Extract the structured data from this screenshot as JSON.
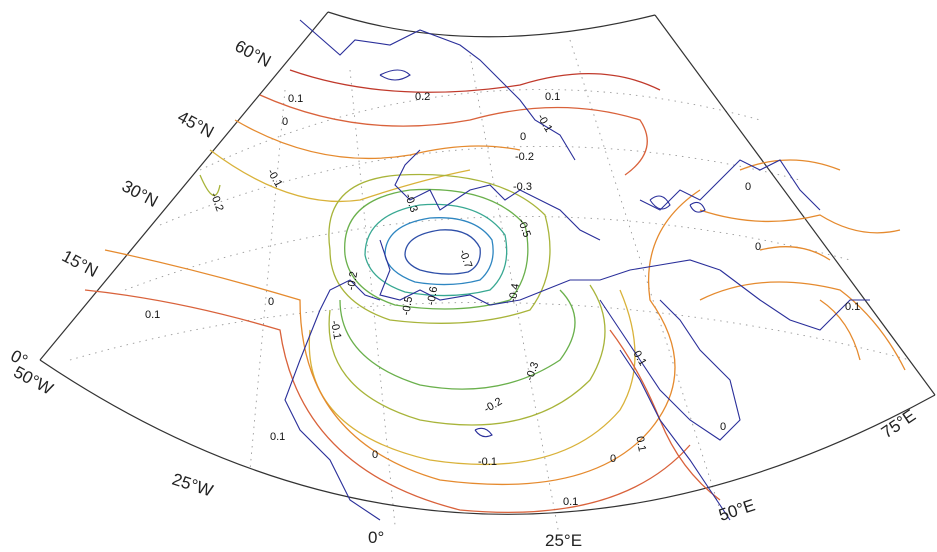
{
  "map": {
    "lat_labels": [
      {
        "text": "60°N",
        "key": "lat60"
      },
      {
        "text": "45°N",
        "key": "lat45"
      },
      {
        "text": "30°N",
        "key": "lat30"
      },
      {
        "text": "15°N",
        "key": "lat15"
      },
      {
        "text": "0°",
        "key": "lat0"
      }
    ],
    "lon_labels": [
      {
        "text": "50°W",
        "key": "lon50w"
      },
      {
        "text": "25°W",
        "key": "lon25w"
      },
      {
        "text": "0°",
        "key": "lon0"
      },
      {
        "text": "25°E",
        "key": "lon25e"
      },
      {
        "text": "50°E",
        "key": "lon50e"
      },
      {
        "text": "75°E",
        "key": "lon75e"
      }
    ],
    "contour_labels": [
      {
        "text": "0.2",
        "key": "c1"
      },
      {
        "text": "0.1",
        "key": "c2"
      },
      {
        "text": "0",
        "key": "c3"
      },
      {
        "text": "-0.1",
        "key": "c4"
      },
      {
        "text": "-0.2",
        "key": "c5"
      },
      {
        "text": "-0.1",
        "key": "c6"
      },
      {
        "text": "0.1",
        "key": "c7"
      },
      {
        "text": "0",
        "key": "c8"
      },
      {
        "text": "-0.2",
        "key": "c9"
      },
      {
        "text": "-0.3",
        "key": "c10"
      },
      {
        "text": "-0.5",
        "key": "c11"
      },
      {
        "text": "-0.7",
        "key": "c12"
      },
      {
        "text": "-0.3",
        "key": "c13"
      },
      {
        "text": "-0.4",
        "key": "c14"
      },
      {
        "text": "-0.2",
        "key": "c15"
      },
      {
        "text": "-0.1",
        "key": "c16"
      },
      {
        "text": "0",
        "key": "c17"
      },
      {
        "text": "0.1",
        "key": "c18"
      },
      {
        "text": "0",
        "key": "c19"
      },
      {
        "text": "0.1",
        "key": "c20"
      },
      {
        "text": "0",
        "key": "c21"
      },
      {
        "text": "0",
        "key": "c22"
      },
      {
        "text": "0",
        "key": "c23"
      },
      {
        "text": "-0.3",
        "key": "c24"
      },
      {
        "text": "-0.2",
        "key": "c25"
      },
      {
        "text": "-0.1",
        "key": "c26"
      },
      {
        "text": "0",
        "key": "c27"
      },
      {
        "text": "0.1",
        "key": "c28"
      },
      {
        "text": "0.1",
        "key": "c29"
      },
      {
        "text": "0.1",
        "key": "c30"
      },
      {
        "text": "0.1",
        "key": "c31"
      },
      {
        "text": "-0.5",
        "key": "c32"
      },
      {
        "text": "-0.6",
        "key": "c33"
      }
    ],
    "colors": {
      "frame": "#333333",
      "coastline": "#2a2f9a",
      "graticule": "#9a9a9a",
      "contour_pos_02": "#c0392b",
      "contour_pos_01": "#d9623b",
      "contour_zero": "#e58a2e",
      "contour_neg_01": "#d9b23a",
      "contour_neg_02": "#a8b43a",
      "contour_neg_03": "#6ab04c",
      "contour_neg_04": "#38a892",
      "contour_neg_05": "#2e86c1",
      "contour_neg_06": "#2e4fa8"
    }
  }
}
